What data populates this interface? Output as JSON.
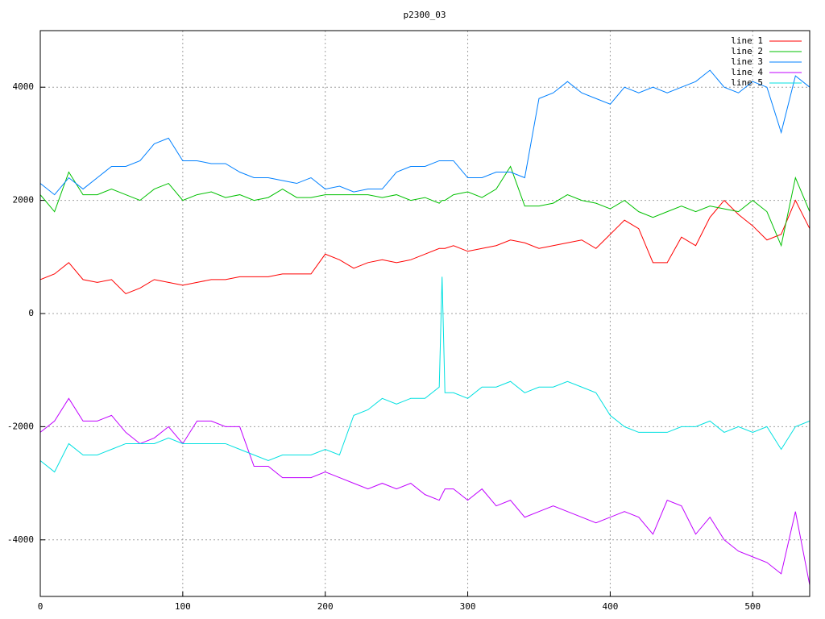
{
  "chart_data": {
    "type": "line",
    "title": "p2300_03",
    "x": [
      0,
      10,
      20,
      30,
      40,
      50,
      60,
      70,
      80,
      90,
      100,
      110,
      120,
      130,
      140,
      150,
      160,
      170,
      180,
      190,
      200,
      210,
      220,
      230,
      240,
      250,
      260,
      270,
      280,
      282,
      284,
      290,
      300,
      310,
      320,
      330,
      340,
      350,
      360,
      370,
      380,
      390,
      400,
      410,
      420,
      430,
      440,
      450,
      460,
      470,
      480,
      490,
      500,
      510,
      520,
      530,
      540
    ],
    "series": [
      {
        "name": "line 1",
        "color": "#ff0000",
        "values": [
          600,
          700,
          900,
          600,
          550,
          600,
          350,
          450,
          600,
          550,
          500,
          550,
          600,
          600,
          650,
          650,
          650,
          700,
          700,
          700,
          1050,
          950,
          800,
          900,
          950,
          900,
          950,
          1050,
          1150,
          1150,
          1150,
          1200,
          1100,
          1150,
          1200,
          1300,
          1250,
          1150,
          1200,
          1250,
          1300,
          1150,
          1400,
          1650,
          1500,
          900,
          900,
          1350,
          1200,
          1700,
          2000,
          1750,
          1550,
          1300,
          1400,
          2000,
          1500
        ]
      },
      {
        "name": "line 2",
        "color": "#00c000",
        "values": [
          2100,
          1800,
          2500,
          2100,
          2100,
          2200,
          2100,
          2000,
          2200,
          2300,
          2000,
          2100,
          2150,
          2050,
          2100,
          2000,
          2050,
          2200,
          2050,
          2050,
          2100,
          2100,
          2100,
          2100,
          2050,
          2100,
          2000,
          2050,
          1950,
          2000,
          2000,
          2100,
          2150,
          2050,
          2200,
          2600,
          1900,
          1900,
          1950,
          2100,
          2000,
          1950,
          1850,
          2000,
          1800,
          1700,
          1800,
          1900,
          1800,
          1900,
          1850,
          1800,
          2000,
          1800,
          1200,
          2400,
          1800
        ]
      },
      {
        "name": "line 3",
        "color": "#0080ff",
        "values": [
          2300,
          2100,
          2400,
          2200,
          2400,
          2600,
          2600,
          2700,
          3000,
          3100,
          2700,
          2700,
          2650,
          2650,
          2500,
          2400,
          2400,
          2350,
          2300,
          2400,
          2200,
          2250,
          2150,
          2200,
          2200,
          2500,
          2600,
          2600,
          2700,
          2700,
          2700,
          2700,
          2400,
          2400,
          2500,
          2500,
          2400,
          3800,
          3900,
          4100,
          3900,
          3800,
          3700,
          4000,
          3900,
          4000,
          3900,
          4000,
          4100,
          4300,
          4000,
          3900,
          4100,
          4000,
          3200,
          4200,
          4000
        ]
      },
      {
        "name": "line 4",
        "color": "#c000ff",
        "values": [
          -2100,
          -1900,
          -1500,
          -1900,
          -1900,
          -1800,
          -2100,
          -2300,
          -2200,
          -2000,
          -2300,
          -1900,
          -1900,
          -2000,
          -2000,
          -2700,
          -2700,
          -2900,
          -2900,
          -2900,
          -2800,
          -2900,
          -3000,
          -3100,
          -3000,
          -3100,
          -3000,
          -3200,
          -3300,
          -3200,
          -3100,
          -3100,
          -3300,
          -3100,
          -3400,
          -3300,
          -3600,
          -3500,
          -3400,
          -3500,
          -3600,
          -3700,
          -3600,
          -3500,
          -3600,
          -3900,
          -3300,
          -3400,
          -3900,
          -3600,
          -4000,
          -4200,
          -4300,
          -4400,
          -4600,
          -3500,
          -4800
        ]
      },
      {
        "name": "line 5",
        "color": "#00e0e0",
        "values": [
          -2600,
          -2800,
          -2300,
          -2500,
          -2500,
          -2400,
          -2300,
          -2300,
          -2300,
          -2200,
          -2300,
          -2300,
          -2300,
          -2300,
          -2400,
          -2500,
          -2600,
          -2500,
          -2500,
          -2500,
          -2400,
          -2500,
          -1800,
          -1700,
          -1500,
          -1600,
          -1500,
          -1500,
          -1300,
          650,
          -1400,
          -1400,
          -1500,
          -1300,
          -1300,
          -1200,
          -1400,
          -1300,
          -1300,
          -1200,
          -1300,
          -1400,
          -1800,
          -2000,
          -2100,
          -2100,
          -2100,
          -2000,
          -2000,
          -1900,
          -2100,
          -2000,
          -2100,
          -2000,
          -2400,
          -2000,
          -1900
        ]
      }
    ],
    "xlim": [
      0,
      540
    ],
    "xticks": [
      0,
      100,
      200,
      300,
      400,
      500
    ],
    "ylim": [
      -5000,
      5000
    ],
    "yticks": [
      -4000,
      -2000,
      0,
      2000,
      4000
    ],
    "grid": true,
    "legend": "top-right"
  }
}
